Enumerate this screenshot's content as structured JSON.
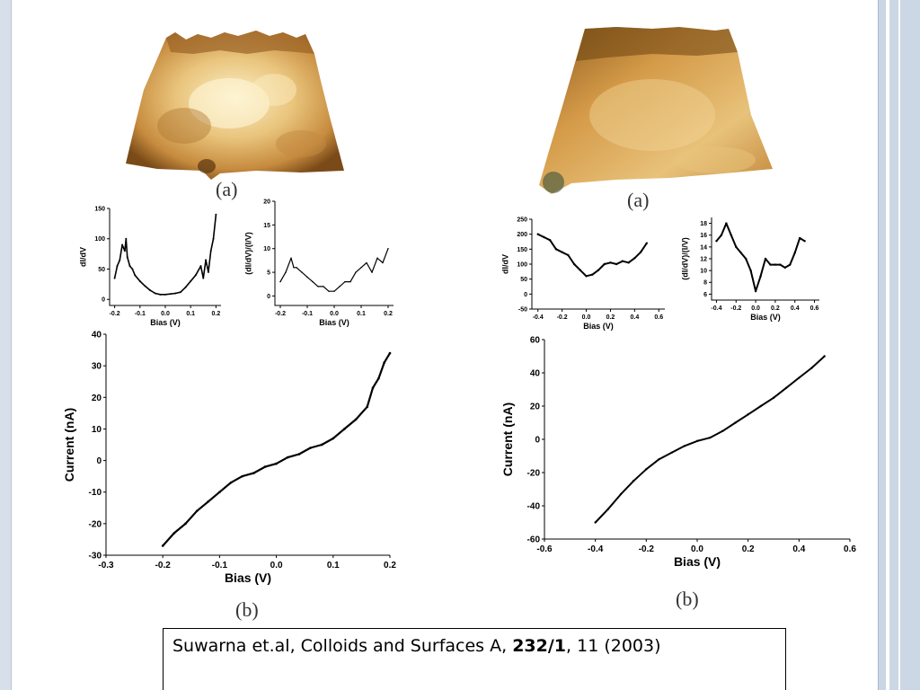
{
  "colors": {
    "trace": "#000000",
    "afm_light": "#f6e4b0",
    "afm_mid": "#d8a558",
    "afm_dark": "#7a4a18"
  },
  "panels": {
    "left_top_label": "(a)",
    "left_bottom_label": "(b)",
    "right_top_label": "(a)",
    "right_bottom_label": "(b)"
  },
  "citation": {
    "authors": "Suwarna et.al, Colloids and Surfaces A, ",
    "volume": "232/1",
    "rest": ", 11 (2003)"
  },
  "chart_data": [
    {
      "id": "left_didv",
      "type": "line",
      "xlabel": "Bias (V)",
      "ylabel": "dI/dV",
      "xlim": [
        -0.22,
        0.22
      ],
      "ylim": [
        -10,
        150
      ],
      "xticks": [
        -0.2,
        -0.1,
        0.0,
        0.1,
        0.2
      ],
      "xtick_labels": [
        "-0.2",
        "-0.1",
        "0.0",
        "0.1",
        "0.2"
      ],
      "yticks": [
        0,
        50,
        100,
        150
      ],
      "ytick_labels": [
        "0",
        "50",
        "100",
        "150"
      ],
      "x": [
        -0.2,
        -0.19,
        -0.18,
        -0.17,
        -0.16,
        -0.155,
        -0.15,
        -0.14,
        -0.13,
        -0.12,
        -0.1,
        -0.08,
        -0.06,
        -0.04,
        -0.02,
        0.0,
        0.02,
        0.04,
        0.06,
        0.08,
        0.1,
        0.12,
        0.14,
        0.15,
        0.16,
        0.17,
        0.18,
        0.19,
        0.2
      ],
      "y": [
        35,
        55,
        65,
        90,
        80,
        100,
        70,
        55,
        50,
        40,
        30,
        22,
        15,
        10,
        8,
        8,
        9,
        10,
        12,
        20,
        30,
        40,
        55,
        35,
        65,
        45,
        80,
        100,
        140
      ]
    },
    {
      "id": "left_norm",
      "type": "line",
      "xlabel": "Bias (V)",
      "ylabel": "(dI/dV)/(I/V)",
      "xlim": [
        -0.22,
        0.22
      ],
      "ylim": [
        -2,
        20
      ],
      "xticks": [
        -0.2,
        -0.1,
        0.0,
        0.1,
        0.2
      ],
      "xtick_labels": [
        "-0.2",
        "-0.1",
        "0.0",
        "0.1",
        "0.2"
      ],
      "yticks": [
        0,
        5,
        10,
        15,
        20
      ],
      "ytick_labels": [
        "0",
        "5",
        "10",
        "15",
        "20"
      ],
      "x": [
        -0.2,
        -0.18,
        -0.16,
        -0.15,
        -0.14,
        -0.12,
        -0.1,
        -0.08,
        -0.06,
        -0.04,
        -0.02,
        0.0,
        0.02,
        0.04,
        0.06,
        0.08,
        0.1,
        0.12,
        0.14,
        0.16,
        0.18,
        0.2
      ],
      "y": [
        3,
        5,
        8,
        6,
        6,
        5,
        4,
        3,
        2,
        2,
        1,
        1,
        2,
        3,
        3,
        5,
        6,
        7,
        5,
        8,
        7,
        10
      ]
    },
    {
      "id": "left_iv",
      "type": "line",
      "xlabel": "Bias (V)",
      "ylabel": "Current (nA)",
      "xlim": [
        -0.3,
        0.2
      ],
      "ylim": [
        -30,
        40
      ],
      "xticks": [
        -0.3,
        -0.2,
        -0.1,
        0.0,
        0.1,
        0.2
      ],
      "xtick_labels": [
        "-0.3",
        "-0.2",
        "-0.1",
        "0.0",
        "0.1",
        "0.2"
      ],
      "yticks": [
        -30,
        -20,
        -10,
        0,
        10,
        20,
        30,
        40
      ],
      "ytick_labels": [
        "-30",
        "-20",
        "-10",
        "0",
        "10",
        "20",
        "30",
        "40"
      ],
      "x": [
        -0.2,
        -0.18,
        -0.16,
        -0.14,
        -0.12,
        -0.1,
        -0.08,
        -0.06,
        -0.04,
        -0.02,
        0.0,
        0.02,
        0.04,
        0.06,
        0.08,
        0.1,
        0.12,
        0.14,
        0.16,
        0.17,
        0.18,
        0.19,
        0.2
      ],
      "y": [
        -27,
        -23,
        -20,
        -16,
        -13,
        -10,
        -7,
        -5,
        -4,
        -2,
        -1,
        1,
        2,
        4,
        5,
        7,
        10,
        13,
        17,
        23,
        26,
        31,
        34
      ]
    },
    {
      "id": "right_didv",
      "type": "line",
      "xlabel": "Bias (V)",
      "ylabel": "dI/dV",
      "xlim": [
        -0.45,
        0.65
      ],
      "ylim": [
        -50,
        250
      ],
      "xticks": [
        -0.4,
        -0.2,
        0.0,
        0.2,
        0.4,
        0.6
      ],
      "xtick_labels": [
        "-0.4",
        "-0.2",
        "0.0",
        "0.2",
        "0.4",
        "0.6"
      ],
      "yticks": [
        -50,
        0,
        50,
        100,
        150,
        200,
        250
      ],
      "ytick_labels": [
        "-50",
        "0",
        "50",
        "100",
        "150",
        "200",
        "250"
      ],
      "x": [
        -0.4,
        -0.35,
        -0.3,
        -0.25,
        -0.2,
        -0.15,
        -0.1,
        -0.05,
        0.0,
        0.05,
        0.1,
        0.15,
        0.2,
        0.25,
        0.3,
        0.35,
        0.4,
        0.45,
        0.5
      ],
      "y": [
        200,
        190,
        180,
        150,
        140,
        130,
        100,
        80,
        60,
        65,
        80,
        100,
        105,
        100,
        110,
        105,
        120,
        140,
        170
      ]
    },
    {
      "id": "right_norm",
      "type": "line",
      "xlabel": "Bias (V)",
      "ylabel": "(dI/dV)/(I/V)",
      "xlim": [
        -0.45,
        0.65
      ],
      "ylim": [
        5,
        19
      ],
      "xticks": [
        -0.4,
        -0.2,
        0.0,
        0.2,
        0.4,
        0.6
      ],
      "xtick_labels": [
        "-0.4",
        "-0.2",
        "0.0",
        "0.2",
        "0.4",
        "0.6"
      ],
      "yticks": [
        6,
        8,
        10,
        12,
        14,
        16,
        18
      ],
      "ytick_labels": [
        "6",
        "8",
        "10",
        "12",
        "14",
        "16",
        "18"
      ],
      "x": [
        -0.4,
        -0.35,
        -0.3,
        -0.25,
        -0.2,
        -0.15,
        -0.1,
        -0.05,
        0.0,
        0.05,
        0.1,
        0.15,
        0.2,
        0.25,
        0.3,
        0.35,
        0.4,
        0.45,
        0.5
      ],
      "y": [
        15,
        16,
        18,
        16,
        14,
        13,
        12,
        10,
        6.5,
        9,
        12,
        11,
        11,
        11,
        10.5,
        11,
        13,
        15.5,
        15
      ]
    },
    {
      "id": "right_iv",
      "type": "line",
      "xlabel": "Bias (V)",
      "ylabel": "Current (nA)",
      "xlim": [
        -0.6,
        0.6
      ],
      "ylim": [
        -60,
        60
      ],
      "xticks": [
        -0.6,
        -0.4,
        -0.2,
        0.0,
        0.2,
        0.4,
        0.6
      ],
      "xtick_labels": [
        "-0.6",
        "-0.4",
        "-0.2",
        "0.0",
        "0.2",
        "0.4",
        "0.6"
      ],
      "yticks": [
        -60,
        -40,
        -20,
        0,
        20,
        40,
        60
      ],
      "ytick_labels": [
        "-60",
        "-40",
        "-20",
        "0",
        "20",
        "40",
        "60"
      ],
      "x": [
        -0.4,
        -0.35,
        -0.3,
        -0.25,
        -0.2,
        -0.15,
        -0.1,
        -0.05,
        0.0,
        0.05,
        0.1,
        0.15,
        0.2,
        0.25,
        0.3,
        0.35,
        0.4,
        0.45,
        0.5
      ],
      "y": [
        -50,
        -42,
        -33,
        -25,
        -18,
        -12,
        -8,
        -4,
        -1,
        1,
        5,
        10,
        15,
        20,
        25,
        31,
        37,
        43,
        50
      ]
    }
  ]
}
